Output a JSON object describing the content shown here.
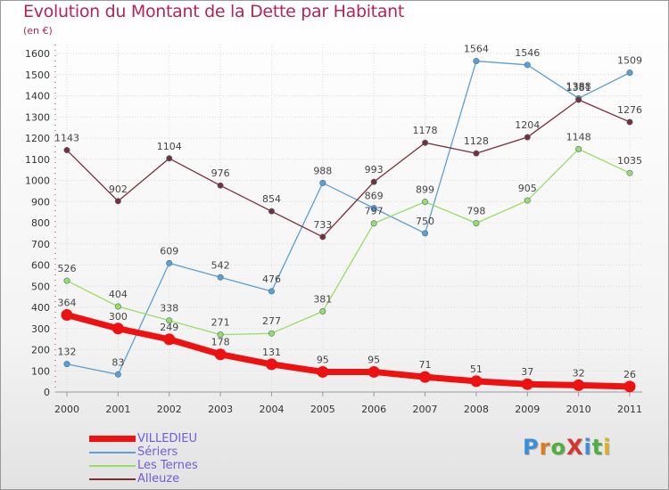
{
  "title": "Evolution du Montant de la Dette par Habitant",
  "subtitle": "(en €)",
  "logo": {
    "text": "ProXiti",
    "letter_colors": [
      "#3a8fd8",
      "#e07a1a",
      "#4fae3c",
      "#d8342c",
      "#3a8fd8",
      "#4fae3c",
      "#e0b020"
    ]
  },
  "chart_data": {
    "type": "line",
    "title": "Evolution du Montant de la Dette par Habitant",
    "ylabel": "(en €)",
    "xlabel": "",
    "x": [
      "2000",
      "2001",
      "2002",
      "2003",
      "2004",
      "2005",
      "2006",
      "2007",
      "2008",
      "2009",
      "2010",
      "2011"
    ],
    "ylim": [
      0,
      1600
    ],
    "yticks": [
      0,
      100,
      200,
      300,
      400,
      500,
      600,
      700,
      800,
      900,
      1000,
      1100,
      1200,
      1300,
      1400,
      1500,
      1600
    ],
    "grid": true,
    "legend_position": "bottom-left",
    "series": [
      {
        "name": "VILLEDIEU",
        "color": "#ee1111",
        "width": 7,
        "values": [
          364,
          300,
          249,
          178,
          131,
          95,
          95,
          71,
          51,
          37,
          32,
          26
        ]
      },
      {
        "name": "Sériers",
        "color": "#5b9fd4",
        "width": 1.3,
        "values": [
          132,
          83,
          609,
          542,
          476,
          988,
          869,
          750,
          1564,
          1546,
          1388,
          1509
        ]
      },
      {
        "name": "Les Ternes",
        "color": "#99dd66",
        "width": 1.3,
        "values": [
          526,
          404,
          338,
          271,
          277,
          381,
          797,
          899,
          798,
          905,
          1148,
          1035
        ]
      },
      {
        "name": "Alleuze",
        "color": "#7a2e36",
        "width": 1.3,
        "values": [
          1143,
          902,
          1104,
          976,
          854,
          733,
          993,
          1178,
          1128,
          1204,
          1381,
          1276
        ]
      }
    ]
  }
}
